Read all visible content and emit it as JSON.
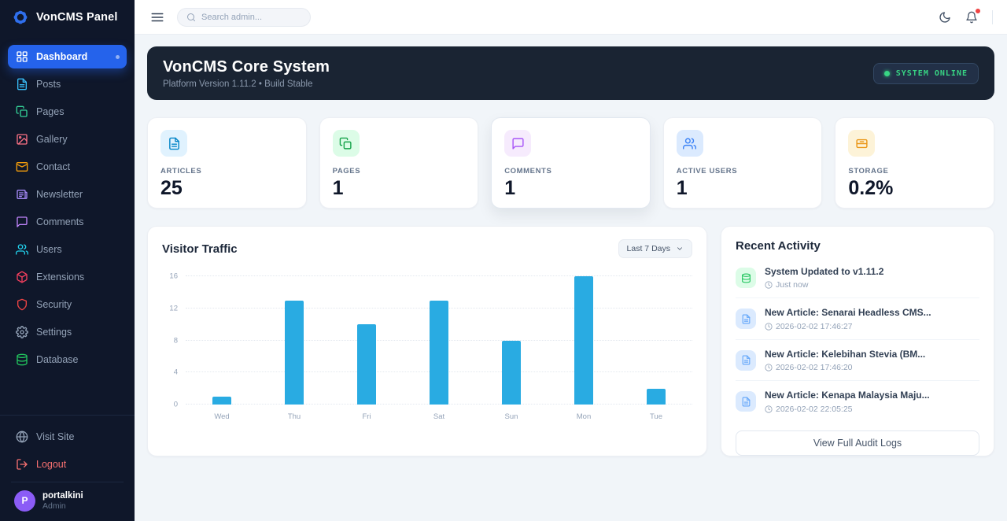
{
  "brand": {
    "title": "VonCMS Panel"
  },
  "topbar": {
    "search_placeholder": "Search admin..."
  },
  "sidebar": {
    "items": [
      {
        "label": "Dashboard",
        "icon": "dashboard-grid-icon",
        "color": "#ffffff",
        "active": true
      },
      {
        "label": "Posts",
        "icon": "file-icon",
        "color": "#38bdf8"
      },
      {
        "label": "Pages",
        "icon": "pages-icon",
        "color": "#34d399"
      },
      {
        "label": "Gallery",
        "icon": "image-icon",
        "color": "#fb7185"
      },
      {
        "label": "Contact",
        "icon": "mail-icon",
        "color": "#f59e0b"
      },
      {
        "label": "Newsletter",
        "icon": "newspaper-icon",
        "color": "#a78bfa"
      },
      {
        "label": "Comments",
        "icon": "chat-icon",
        "color": "#c084fc"
      },
      {
        "label": "Users",
        "icon": "users-icon",
        "color": "#22d3ee"
      },
      {
        "label": "Extensions",
        "icon": "cube-icon",
        "color": "#f43f5e"
      },
      {
        "label": "Security",
        "icon": "shield-icon",
        "color": "#ef4444"
      },
      {
        "label": "Settings",
        "icon": "gear-icon",
        "color": "#94a3b8"
      },
      {
        "label": "Database",
        "icon": "database-icon",
        "color": "#22c55e"
      }
    ],
    "footer_links": [
      {
        "label": "Visit Site",
        "icon": "globe-icon",
        "color": "#94a3b8"
      },
      {
        "label": "Logout",
        "icon": "logout-icon",
        "color": "#f87171",
        "danger": true
      }
    ],
    "user": {
      "initial": "P",
      "name": "portalkini",
      "role": "Admin"
    }
  },
  "hero": {
    "title": "VonCMS Core System",
    "subtitle": "Platform Version 1.11.2 • Build Stable",
    "status_badge": "SYSTEM ONLINE",
    "status_color": "#38d584"
  },
  "stats": [
    {
      "label": "ARTICLES",
      "value": "25",
      "icon": "file-icon",
      "icon_color": "#0284c7",
      "tile_bg": "#e0f2fe"
    },
    {
      "label": "PAGES",
      "value": "1",
      "icon": "pages-icon",
      "icon_color": "#16a34a",
      "tile_bg": "#dcfce7"
    },
    {
      "label": "COMMENTS",
      "value": "1",
      "icon": "chat-icon",
      "icon_color": "#a855f7",
      "tile_bg": "#f6ebfd",
      "raised": true
    },
    {
      "label": "ACTIVE USERS",
      "value": "1",
      "icon": "users-icon",
      "icon_color": "#3b82f6",
      "tile_bg": "#dbeafe"
    },
    {
      "label": "STORAGE",
      "value": "0.2%",
      "icon": "storage-icon",
      "icon_color": "#ea9616",
      "tile_bg": "#fdf3d8"
    }
  ],
  "chart_card": {
    "title": "Visitor Traffic",
    "range_selector": "Last 7 Days"
  },
  "chart_data": {
    "type": "bar",
    "title": "Visitor Traffic",
    "categories": [
      "Wed",
      "Thu",
      "Fri",
      "Sat",
      "Sun",
      "Mon",
      "Tue"
    ],
    "values": [
      1,
      13,
      10,
      13,
      8,
      16,
      2
    ],
    "xlabel": "",
    "ylabel": "",
    "ylim": [
      0,
      16
    ],
    "yticks": [
      0,
      4,
      8,
      12,
      16
    ],
    "bar_color": "#29abe2",
    "grid": "horizontal-dotted",
    "legend": "none"
  },
  "activity": {
    "title": "Recent Activity",
    "items": [
      {
        "title": "System Updated to v1.11.2",
        "time": "Just now",
        "icon": "database-icon",
        "icon_color": "#22c55e",
        "tile_bg": "#dcfce7"
      },
      {
        "title": "New Article: Senarai Headless CMS...",
        "time": "2026-02-02 17:46:27",
        "icon": "file-icon",
        "icon_color": "#60a5fa",
        "tile_bg": "#dbeafe"
      },
      {
        "title": "New Article: Kelebihan Stevia (BM...",
        "time": "2026-02-02 17:46:20",
        "icon": "file-icon",
        "icon_color": "#60a5fa",
        "tile_bg": "#dbeafe"
      },
      {
        "title": "New Article: Kenapa Malaysia Maju...",
        "time": "2026-02-02 22:05:25",
        "icon": "file-icon",
        "icon_color": "#60a5fa",
        "tile_bg": "#dbeafe"
      }
    ],
    "button": "View Full Audit Logs"
  }
}
